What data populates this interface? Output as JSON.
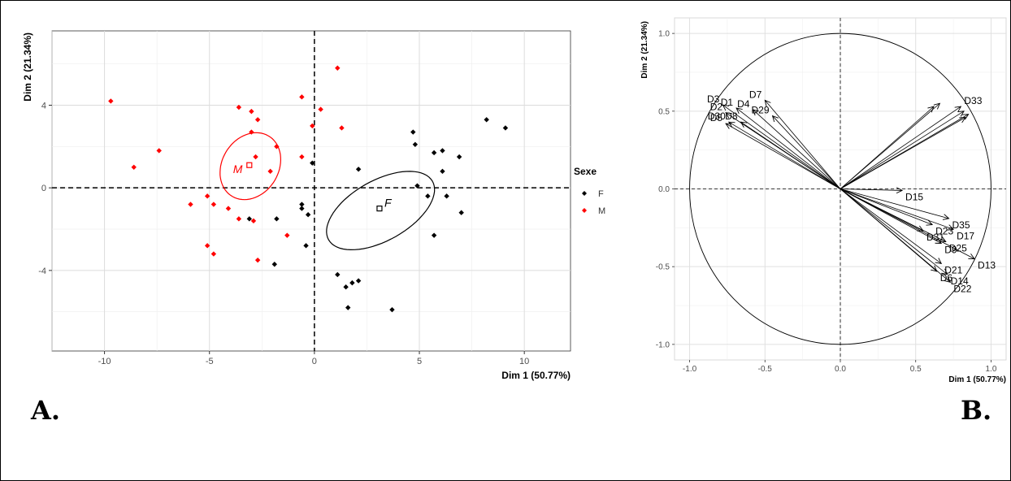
{
  "panel_labels": {
    "a": "A.",
    "b": "B."
  },
  "chart_data": [
    {
      "type": "scatter",
      "title": "",
      "xlabel": "Dim 1 (50.77%)",
      "ylabel": "Dim 2 (21.34%)",
      "xlim": [
        -12.5,
        12.2
      ],
      "ylim": [
        -7.9,
        7.6
      ],
      "xticks": [
        -10,
        -5,
        0,
        5,
        10
      ],
      "yticks": [
        -4,
        0,
        4
      ],
      "grid": true,
      "legend": {
        "title": "Sexe",
        "position": "right",
        "entries": [
          "F",
          "M"
        ]
      },
      "series": [
        {
          "name": "F",
          "color": "#000000",
          "points": [
            [
              4.7,
              2.7
            ],
            [
              4.8,
              2.1
            ],
            [
              5.7,
              1.7
            ],
            [
              6.1,
              1.8
            ],
            [
              6.9,
              1.5
            ],
            [
              8.2,
              3.3
            ],
            [
              9.1,
              2.9
            ],
            [
              6.1,
              0.8
            ],
            [
              4.9,
              0.1
            ],
            [
              5.4,
              -0.4
            ],
            [
              6.3,
              -0.4
            ],
            [
              7.0,
              -1.2
            ],
            [
              5.7,
              -2.3
            ],
            [
              2.1,
              0.9
            ],
            [
              -0.1,
              1.2
            ],
            [
              -0.6,
              -0.8
            ],
            [
              -0.6,
              -1.0
            ],
            [
              -0.3,
              -1.3
            ],
            [
              -3.1,
              -1.5
            ],
            [
              -1.8,
              -1.5
            ],
            [
              -0.4,
              -2.8
            ],
            [
              -1.9,
              -3.7
            ],
            [
              1.1,
              -4.2
            ],
            [
              1.5,
              -4.8
            ],
            [
              1.8,
              -4.6
            ],
            [
              2.1,
              -4.5
            ],
            [
              1.6,
              -5.8
            ],
            [
              3.7,
              -5.9
            ]
          ],
          "centroid": [
            3.1,
            -1.0
          ],
          "centroid_label": "F",
          "ellipse": {
            "center": [
              3.15,
              -1.1
            ],
            "semi_axes": [
              2.85,
              1.45
            ],
            "angle_deg": 30
          }
        },
        {
          "name": "M",
          "color": "#ff0000",
          "points": [
            [
              -9.7,
              4.2
            ],
            [
              -8.6,
              1.0
            ],
            [
              -7.4,
              1.8
            ],
            [
              -3.6,
              3.9
            ],
            [
              -3.0,
              3.7
            ],
            [
              -2.7,
              3.3
            ],
            [
              -3.0,
              2.7
            ],
            [
              -2.8,
              1.5
            ],
            [
              -1.8,
              2.0
            ],
            [
              -2.1,
              0.8
            ],
            [
              -0.6,
              4.4
            ],
            [
              -0.1,
              3.0
            ],
            [
              0.3,
              3.8
            ],
            [
              1.1,
              5.8
            ],
            [
              1.3,
              2.9
            ],
            [
              -0.6,
              1.5
            ],
            [
              -5.9,
              -0.8
            ],
            [
              -5.1,
              -0.4
            ],
            [
              -4.8,
              -0.8
            ],
            [
              -4.1,
              -1.0
            ],
            [
              -3.6,
              -1.5
            ],
            [
              -2.9,
              -1.6
            ],
            [
              -5.1,
              -2.8
            ],
            [
              -4.8,
              -3.2
            ],
            [
              -1.3,
              -2.3
            ],
            [
              -2.7,
              -3.5
            ]
          ],
          "centroid": [
            -3.1,
            1.1
          ],
          "centroid_label": "M",
          "ellipse": {
            "center": [
              -3.05,
              1.05
            ],
            "semi_axes": [
              1.7,
              1.35
            ],
            "angle_deg": 60
          }
        }
      ]
    },
    {
      "type": "scatter",
      "subtype": "correlation-circle",
      "title": "",
      "xlabel": "Dim 1 (50.77%)",
      "ylabel": "Dim 2 (21.34%)",
      "xlim": [
        -1.1,
        1.1
      ],
      "ylim": [
        -1.1,
        1.1
      ],
      "xticks": [
        -1.0,
        -0.5,
        0.0,
        0.5,
        1.0
      ],
      "xtick_labels": [
        "-1.0",
        "-0.5",
        "0.0",
        "0.5",
        "1.0"
      ],
      "yticks": [
        -1.0,
        -0.5,
        0.0,
        0.5,
        1.0
      ],
      "ytick_labels": [
        "-1.0",
        "-0.5",
        "0.0",
        "0.5",
        "1.0"
      ],
      "grid": true,
      "vectors": [
        {
          "label": "D3",
          "x": -0.78,
          "y": 0.54
        },
        {
          "label": "D1",
          "x": -0.69,
          "y": 0.52
        },
        {
          "label": "D2",
          "x": -0.76,
          "y": 0.49
        },
        {
          "label": "D4",
          "x": -0.58,
          "y": 0.51
        },
        {
          "label": "D7",
          "x": -0.5,
          "y": 0.57
        },
        {
          "label": "D29",
          "x": -0.45,
          "y": 0.47
        },
        {
          "label": "D5",
          "x": -0.76,
          "y": 0.42
        },
        {
          "label": "D8",
          "x": -0.66,
          "y": 0.43
        },
        {
          "label": "D30",
          "x": -0.74,
          "y": 0.43
        },
        {
          "label": "",
          "x": 0.62,
          "y": 0.53
        },
        {
          "label": "",
          "x": 0.66,
          "y": 0.55
        },
        {
          "label": "D33",
          "x": 0.8,
          "y": 0.53
        },
        {
          "label": "",
          "x": 0.82,
          "y": 0.5
        },
        {
          "label": "",
          "x": 0.85,
          "y": 0.48
        },
        {
          "label": "",
          "x": 0.83,
          "y": 0.46
        },
        {
          "label": "D15",
          "x": 0.41,
          "y": -0.01
        },
        {
          "label": "D35",
          "x": 0.72,
          "y": -0.19
        },
        {
          "label": "D23",
          "x": 0.61,
          "y": -0.23
        },
        {
          "label": "D17",
          "x": 0.75,
          "y": -0.26
        },
        {
          "label": "D31",
          "x": 0.55,
          "y": -0.27
        },
        {
          "label": "D9",
          "x": 0.67,
          "y": -0.35
        },
        {
          "label": "D25",
          "x": 0.7,
          "y": -0.34
        },
        {
          "label": "D13",
          "x": 0.89,
          "y": -0.45
        },
        {
          "label": "D21",
          "x": 0.67,
          "y": -0.48
        },
        {
          "label": "D14",
          "x": 0.71,
          "y": -0.55
        },
        {
          "label": "D6",
          "x": 0.64,
          "y": -0.53
        },
        {
          "label": "D22",
          "x": 0.73,
          "y": -0.6
        }
      ]
    }
  ]
}
